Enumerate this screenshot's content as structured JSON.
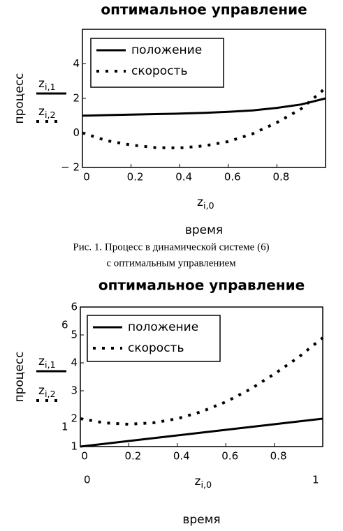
{
  "chart_data": [
    {
      "type": "line",
      "title": "оптимальное управление",
      "y_label": "процесс",
      "x_label": "время",
      "x_var": {
        "base": "z",
        "sub": "i,0"
      },
      "x": [
        0,
        0.1,
        0.2,
        0.3,
        0.4,
        0.5,
        0.6,
        0.7,
        0.8,
        0.9,
        1.0
      ],
      "series": [
        {
          "name": "положение",
          "color": "#000000",
          "style": "solid",
          "var": {
            "base": "z",
            "sub": "i,1"
          },
          "values": [
            1.0,
            1.03,
            1.06,
            1.09,
            1.12,
            1.16,
            1.22,
            1.3,
            1.45,
            1.65,
            2.0
          ]
        },
        {
          "name": "скорость",
          "color": "#000000",
          "style": "dotted",
          "var": {
            "base": "z",
            "sub": "i,2"
          },
          "values": [
            0.0,
            -0.45,
            -0.7,
            -0.85,
            -0.87,
            -0.75,
            -0.5,
            -0.05,
            0.6,
            1.4,
            2.6
          ]
        }
      ],
      "xlim": [
        0,
        1
      ],
      "xticks": [
        0,
        0.2,
        0.4,
        0.6,
        0.8
      ],
      "ylim": [
        -2,
        6
      ],
      "yticks": [
        {
          "value": -2,
          "label": "− 2"
        },
        0,
        2,
        4
      ]
    },
    {
      "type": "line",
      "title": "оптимальное управление",
      "y_label": "процесс",
      "x_label": "время",
      "x_var": {
        "base": "z",
        "sub": "i,0"
      },
      "x": [
        0,
        0.1,
        0.2,
        0.3,
        0.4,
        0.5,
        0.6,
        0.7,
        0.8,
        0.9,
        1.0
      ],
      "series": [
        {
          "name": "положение",
          "color": "#000000",
          "style": "solid",
          "var": {
            "base": "z",
            "sub": "i,1"
          },
          "values": [
            1.0,
            1.1,
            1.2,
            1.3,
            1.4,
            1.5,
            1.6,
            1.7,
            1.8,
            1.9,
            2.0
          ]
        },
        {
          "name": "скорость",
          "color": "#000000",
          "style": "dotted",
          "var": {
            "base": "z",
            "sub": "i,2"
          },
          "values": [
            2.0,
            1.85,
            1.8,
            1.85,
            2.0,
            2.25,
            2.6,
            3.05,
            3.6,
            4.2,
            4.9
          ]
        }
      ],
      "xlim": [
        0,
        1
      ],
      "xticks": [
        0,
        0.2,
        0.4,
        0.6,
        0.8
      ],
      "ylim": [
        1,
        6
      ],
      "yticks": [
        1,
        2,
        3,
        4,
        5,
        6
      ],
      "x_range_labels": [
        0,
        1
      ],
      "y_range_labels": [
        1,
        6
      ]
    }
  ],
  "caption": [
    "Рис. 1. Процесс в динамической системе (6)",
    "с оптимальным управлением"
  ]
}
